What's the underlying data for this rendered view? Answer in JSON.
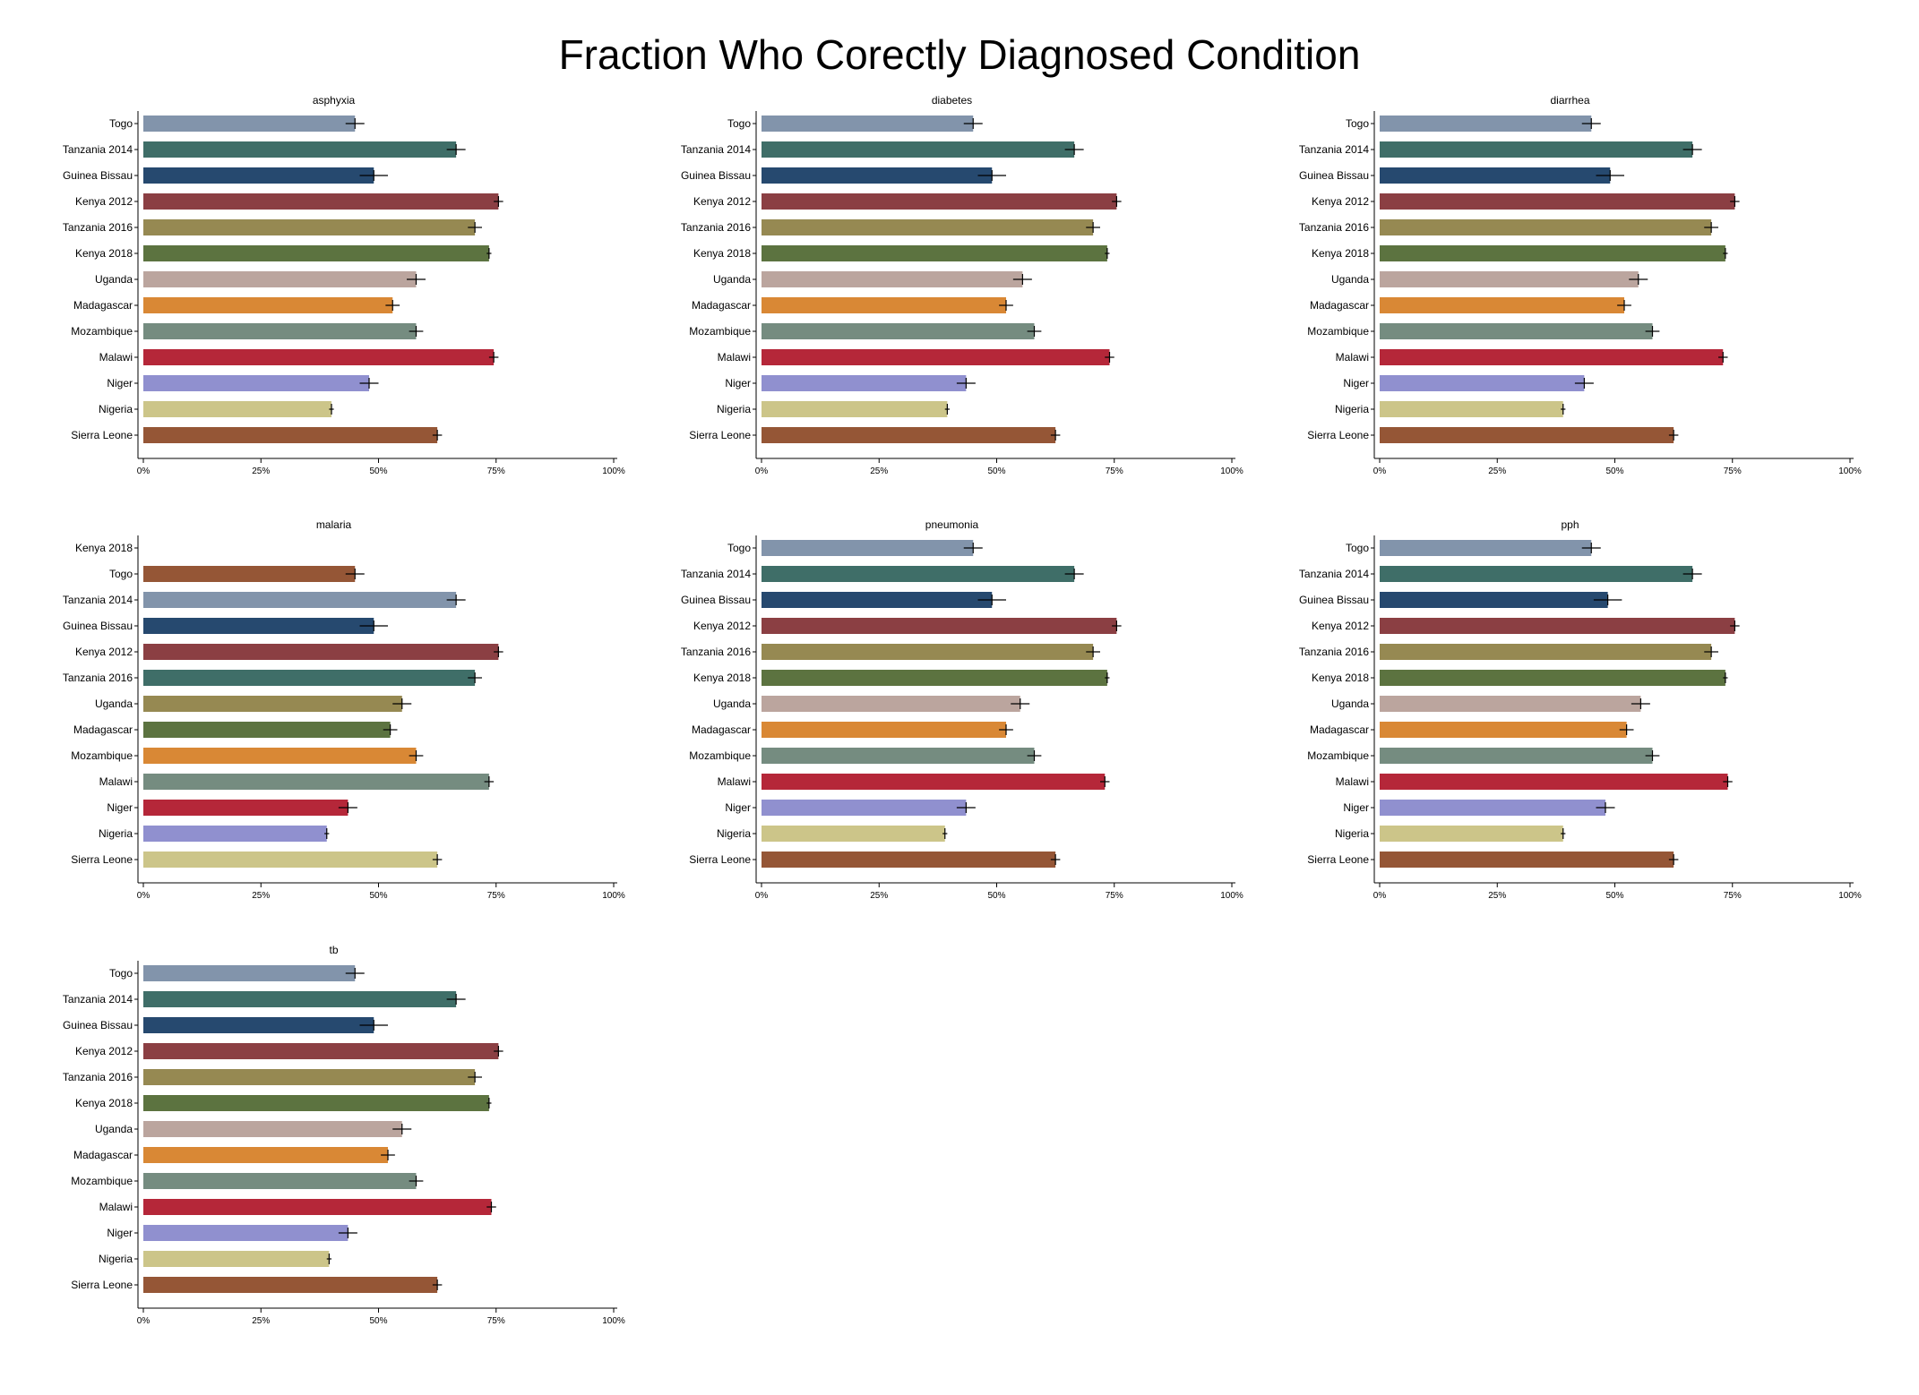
{
  "figure": {
    "title": "Fraction Who Corectly Diagnosed Condition"
  },
  "colors": {
    "Togo": "#8294ab",
    "Tanzania 2014": "#3f6e68",
    "Guinea Bissau": "#26496f",
    "Kenya 2012": "#8b3f43",
    "Tanzania 2016": "#968952",
    "Kenya 2018": "#5c7340",
    "Uganda": "#bba59e",
    "Madagascar": "#d98835",
    "Mozambique": "#758c80",
    "Malawi": "#b52739",
    "Niger": "#9090cf",
    "Nigeria": "#ccc589",
    "Sierra Leone": "#955636",
    "axis": "#000000",
    "errorbar": "#000000"
  },
  "chart_data": [
    {
      "type": "bar",
      "orientation": "horizontal",
      "title": "asphyxia",
      "categories": [
        "Togo",
        "Tanzania 2014",
        "Guinea Bissau",
        "Kenya 2012",
        "Tanzania 2016",
        "Kenya 2018",
        "Uganda",
        "Madagascar",
        "Mozambique",
        "Malawi",
        "Niger",
        "Nigeria",
        "Sierra Leone"
      ],
      "values": [
        0.45,
        0.665,
        0.49,
        0.755,
        0.705,
        0.735,
        0.58,
        0.53,
        0.58,
        0.745,
        0.48,
        0.4,
        0.625
      ],
      "errors": [
        0.02,
        0.02,
        0.03,
        0.01,
        0.015,
        0.005,
        0.02,
        0.015,
        0.015,
        0.01,
        0.02,
        0.005,
        0.01
      ],
      "xlim": [
        0,
        1
      ],
      "xticks": [
        "0%",
        "25%",
        "50%",
        "75%",
        "100%"
      ]
    },
    {
      "type": "bar",
      "orientation": "horizontal",
      "title": "diabetes",
      "categories": [
        "Togo",
        "Tanzania 2014",
        "Guinea Bissau",
        "Kenya 2012",
        "Tanzania 2016",
        "Kenya 2018",
        "Uganda",
        "Madagascar",
        "Mozambique",
        "Malawi",
        "Niger",
        "Nigeria",
        "Sierra Leone"
      ],
      "values": [
        0.45,
        0.665,
        0.49,
        0.755,
        0.705,
        0.735,
        0.555,
        0.52,
        0.58,
        0.74,
        0.435,
        0.395,
        0.625
      ],
      "errors": [
        0.02,
        0.02,
        0.03,
        0.01,
        0.015,
        0.005,
        0.02,
        0.015,
        0.015,
        0.01,
        0.02,
        0.005,
        0.01
      ],
      "xlim": [
        0,
        1
      ],
      "xticks": [
        "0%",
        "25%",
        "50%",
        "75%",
        "100%"
      ]
    },
    {
      "type": "bar",
      "orientation": "horizontal",
      "title": "diarrhea",
      "categories": [
        "Togo",
        "Tanzania 2014",
        "Guinea Bissau",
        "Kenya 2012",
        "Tanzania 2016",
        "Kenya 2018",
        "Uganda",
        "Madagascar",
        "Mozambique",
        "Malawi",
        "Niger",
        "Nigeria",
        "Sierra Leone"
      ],
      "values": [
        0.45,
        0.665,
        0.49,
        0.755,
        0.705,
        0.735,
        0.55,
        0.52,
        0.58,
        0.73,
        0.435,
        0.39,
        0.625
      ],
      "errors": [
        0.02,
        0.02,
        0.03,
        0.01,
        0.015,
        0.005,
        0.02,
        0.015,
        0.015,
        0.01,
        0.02,
        0.005,
        0.01
      ],
      "xlim": [
        0,
        1
      ],
      "xticks": [
        "0%",
        "25%",
        "50%",
        "75%",
        "100%"
      ]
    },
    {
      "type": "bar",
      "orientation": "horizontal",
      "title": "malaria",
      "categories": [
        "Kenya 2018",
        "Togo",
        "Tanzania 2014",
        "Guinea Bissau",
        "Kenya 2012",
        "Tanzania 2016",
        "Uganda",
        "Madagascar",
        "Mozambique",
        "Malawi",
        "Niger",
        "Nigeria",
        "Sierra Leone"
      ],
      "values": [
        null,
        0.45,
        0.665,
        0.49,
        0.755,
        0.705,
        0.55,
        0.525,
        0.58,
        0.735,
        0.435,
        0.39,
        0.625
      ],
      "errors": [
        null,
        0.02,
        0.02,
        0.03,
        0.01,
        0.015,
        0.02,
        0.015,
        0.015,
        0.01,
        0.02,
        0.005,
        0.01
      ],
      "bar_colors": [
        "#5c7340",
        "#955636",
        "#8294ab",
        "#26496f",
        "#8b3f43",
        "#3f6e68",
        "#968952",
        "#5c7340",
        "#d98835",
        "#758c80",
        "#b52739",
        "#9090cf",
        "#ccc589"
      ],
      "xlim": [
        0,
        1
      ],
      "xticks": [
        "0%",
        "25%",
        "50%",
        "75%",
        "100%"
      ]
    },
    {
      "type": "bar",
      "orientation": "horizontal",
      "title": "pneumonia",
      "categories": [
        "Togo",
        "Tanzania 2014",
        "Guinea Bissau",
        "Kenya 2012",
        "Tanzania 2016",
        "Kenya 2018",
        "Uganda",
        "Madagascar",
        "Mozambique",
        "Malawi",
        "Niger",
        "Nigeria",
        "Sierra Leone"
      ],
      "values": [
        0.45,
        0.665,
        0.49,
        0.755,
        0.705,
        0.735,
        0.55,
        0.52,
        0.58,
        0.73,
        0.435,
        0.39,
        0.625
      ],
      "errors": [
        0.02,
        0.02,
        0.03,
        0.01,
        0.015,
        0.005,
        0.02,
        0.015,
        0.015,
        0.01,
        0.02,
        0.005,
        0.01
      ],
      "xlim": [
        0,
        1
      ],
      "xticks": [
        "0%",
        "25%",
        "50%",
        "75%",
        "100%"
      ]
    },
    {
      "type": "bar",
      "orientation": "horizontal",
      "title": "pph",
      "categories": [
        "Togo",
        "Tanzania 2014",
        "Guinea Bissau",
        "Kenya 2012",
        "Tanzania 2016",
        "Kenya 2018",
        "Uganda",
        "Madagascar",
        "Mozambique",
        "Malawi",
        "Niger",
        "Nigeria",
        "Sierra Leone"
      ],
      "values": [
        0.45,
        0.665,
        0.485,
        0.755,
        0.705,
        0.735,
        0.555,
        0.525,
        0.58,
        0.74,
        0.48,
        0.39,
        0.625
      ],
      "errors": [
        0.02,
        0.02,
        0.03,
        0.01,
        0.015,
        0.005,
        0.02,
        0.015,
        0.015,
        0.01,
        0.02,
        0.005,
        0.01
      ],
      "xlim": [
        0,
        1
      ],
      "xticks": [
        "0%",
        "25%",
        "50%",
        "75%",
        "100%"
      ]
    },
    {
      "type": "bar",
      "orientation": "horizontal",
      "title": "tb",
      "categories": [
        "Togo",
        "Tanzania 2014",
        "Guinea Bissau",
        "Kenya 2012",
        "Tanzania 2016",
        "Kenya 2018",
        "Uganda",
        "Madagascar",
        "Mozambique",
        "Malawi",
        "Niger",
        "Nigeria",
        "Sierra Leone"
      ],
      "values": [
        0.45,
        0.665,
        0.49,
        0.755,
        0.705,
        0.735,
        0.55,
        0.52,
        0.58,
        0.74,
        0.435,
        0.395,
        0.625
      ],
      "errors": [
        0.02,
        0.02,
        0.03,
        0.01,
        0.015,
        0.005,
        0.02,
        0.015,
        0.015,
        0.01,
        0.02,
        0.005,
        0.01
      ],
      "xlim": [
        0,
        1
      ],
      "xticks": [
        "0%",
        "25%",
        "50%",
        "75%",
        "100%"
      ]
    }
  ]
}
